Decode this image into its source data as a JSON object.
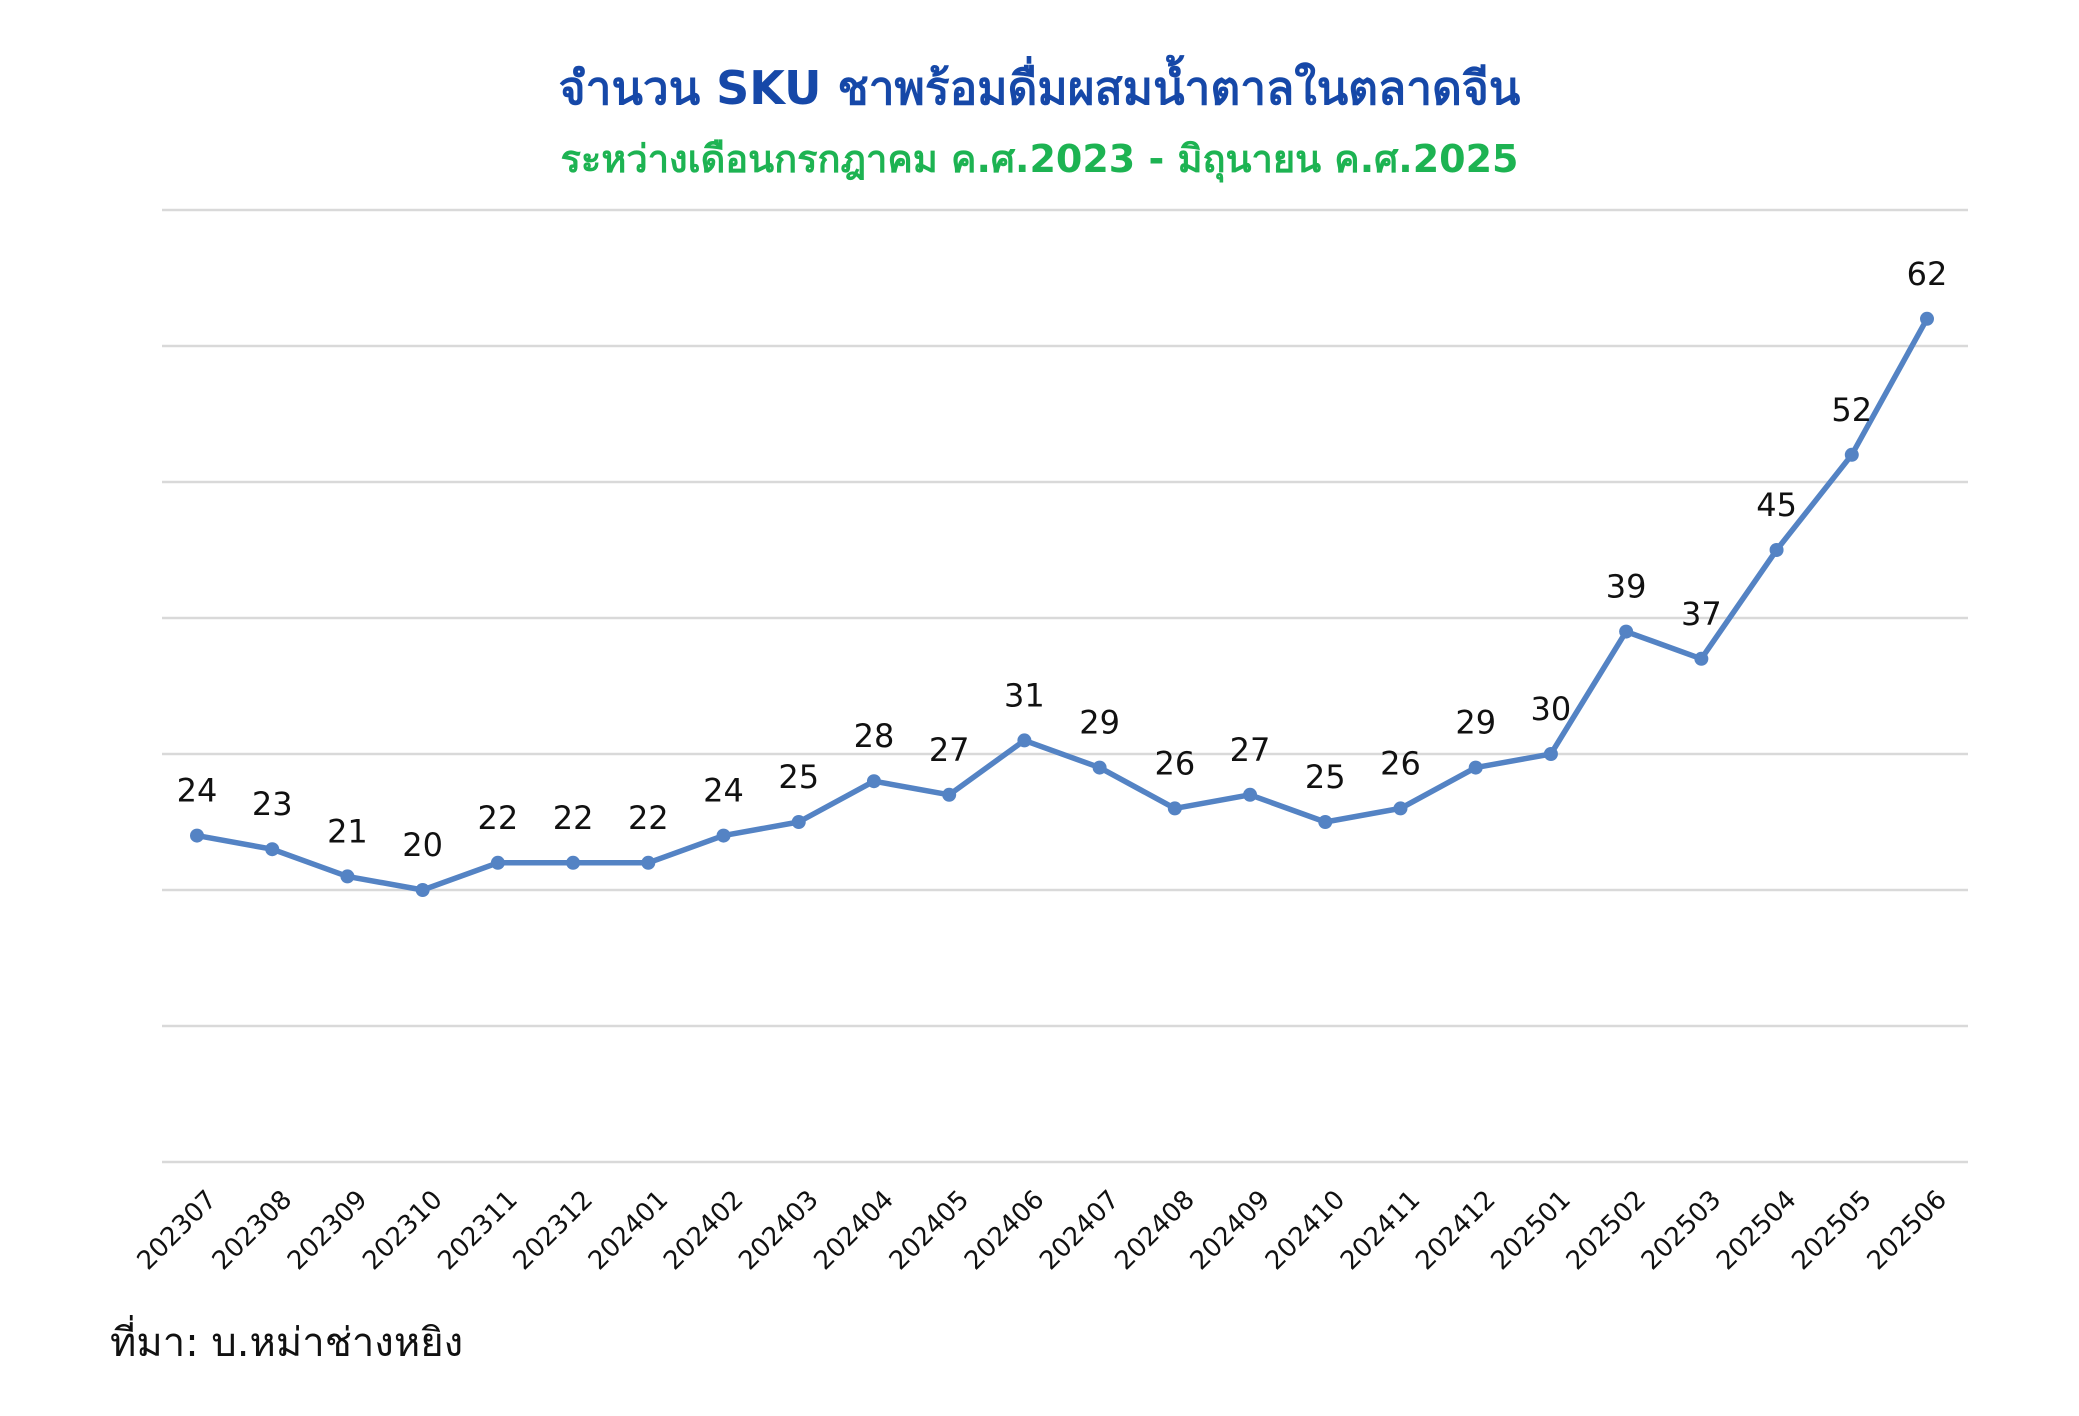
{
  "header": {
    "title": "จำนวน SKU ชาพร้อมดื่มผสมน้ำตาลในตลาดจีน",
    "subtitle": "ระหว่างเดือนกรกฎาคม ค.ศ.2023 - มิถุนายน ค.ศ.2025"
  },
  "footer": {
    "source": "ที่มา: บ.หม่าช่างหยิง"
  },
  "colors": {
    "title": "#1648a8",
    "subtitle": "#1db352",
    "line": "#5483c4",
    "grid": "#d9d9d9",
    "label": "#111111"
  },
  "chart_data": {
    "type": "line",
    "categories": [
      "202307",
      "202308",
      "202309",
      "202310",
      "202311",
      "202312",
      "202401",
      "202402",
      "202403",
      "202404",
      "202405",
      "202406",
      "202407",
      "202408",
      "202409",
      "202410",
      "202411",
      "202412",
      "202501",
      "202502",
      "202503",
      "202504",
      "202505",
      "202506"
    ],
    "series": [
      {
        "values": [
          24,
          23,
          21,
          20,
          22,
          22,
          22,
          24,
          25,
          28,
          27,
          31,
          29,
          26,
          27,
          25,
          26,
          29,
          30,
          39,
          37,
          45,
          52,
          62
        ]
      }
    ],
    "data_labels": true,
    "ylim": [
      0,
      70
    ],
    "y_gridline_step": 10,
    "y_tick_labels_shown": false,
    "grid": "horizontal",
    "legend": "none",
    "xlabel": "",
    "ylabel": ""
  }
}
